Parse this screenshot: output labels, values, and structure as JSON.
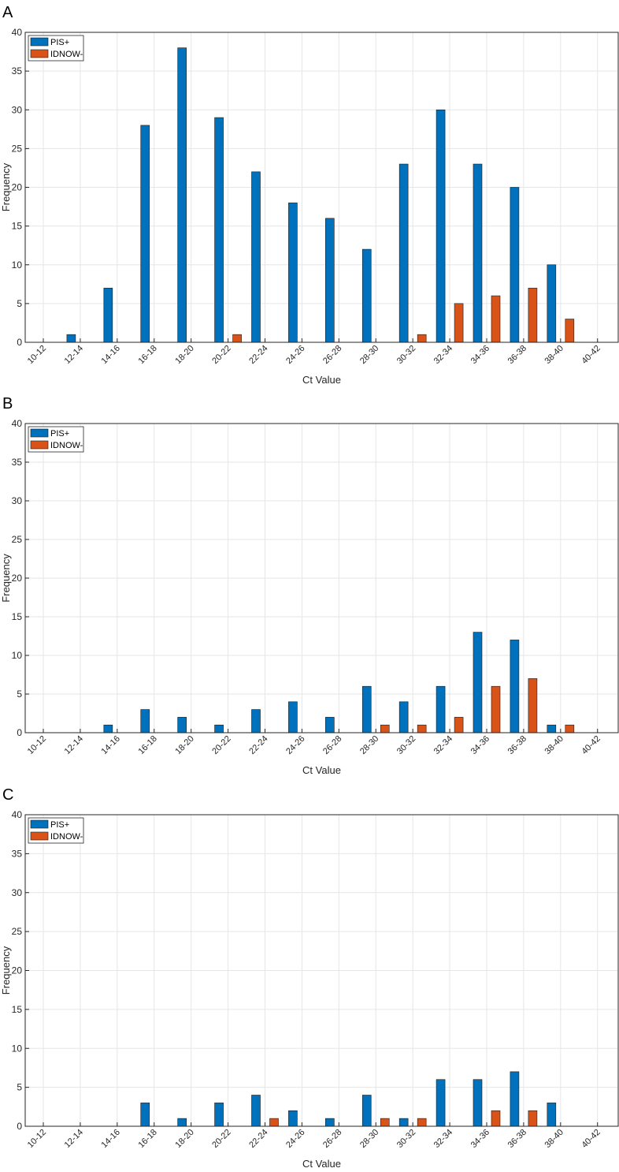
{
  "colors": {
    "series_1": "#0072BD",
    "series_2": "#D95319",
    "axis": "#262626",
    "grid": "#e6e6e6"
  },
  "chart_data": [
    {
      "type": "bar",
      "panel_label": "A",
      "title": "",
      "xlabel": "Ct Value",
      "ylabel": "Frequency",
      "ylim": [
        0,
        40
      ],
      "yticks": [
        0,
        5,
        10,
        15,
        20,
        25,
        30,
        35,
        40
      ],
      "grid": true,
      "legend_position": "top-left",
      "categories": [
        "10-12",
        "12-14",
        "14-16",
        "16-18",
        "18-20",
        "20-22",
        "22-24",
        "24-26",
        "26-28",
        "28-30",
        "30-32",
        "32-34",
        "34-36",
        "36-38",
        "38-40",
        "40-42"
      ],
      "series": [
        {
          "name": "PIS+",
          "values": [
            0,
            1,
            7,
            28,
            38,
            29,
            22,
            18,
            16,
            12,
            23,
            30,
            23,
            20,
            10,
            0
          ]
        },
        {
          "name": "IDNOW-",
          "values": [
            0,
            0,
            0,
            0,
            0,
            1,
            0,
            0,
            0,
            0,
            1,
            5,
            6,
            7,
            3,
            0
          ]
        }
      ]
    },
    {
      "type": "bar",
      "panel_label": "B",
      "title": "",
      "xlabel": "Ct Value",
      "ylabel": "Frequency",
      "ylim": [
        0,
        40
      ],
      "yticks": [
        0,
        5,
        10,
        15,
        20,
        25,
        30,
        35,
        40
      ],
      "grid": true,
      "legend_position": "top-left",
      "categories": [
        "10-12",
        "12-14",
        "14-16",
        "16-18",
        "18-20",
        "20-22",
        "22-24",
        "24-26",
        "26-28",
        "28-30",
        "30-32",
        "32-34",
        "34-36",
        "36-38",
        "38-40",
        "40-42"
      ],
      "series": [
        {
          "name": "PIS+",
          "values": [
            0,
            0,
            1,
            3,
            2,
            1,
            3,
            4,
            2,
            6,
            4,
            6,
            13,
            12,
            1,
            0
          ]
        },
        {
          "name": "IDNOW-",
          "values": [
            0,
            0,
            0,
            0,
            0,
            0,
            0,
            0,
            0,
            1,
            1,
            2,
            6,
            7,
            1,
            0
          ]
        }
      ]
    },
    {
      "type": "bar",
      "panel_label": "C",
      "title": "",
      "xlabel": "Ct Value",
      "ylabel": "Frequency",
      "ylim": [
        0,
        40
      ],
      "yticks": [
        0,
        5,
        10,
        15,
        20,
        25,
        30,
        35,
        40
      ],
      "grid": true,
      "legend_position": "top-left",
      "categories": [
        "10-12",
        "12-14",
        "14-16",
        "16-18",
        "18-20",
        "20-22",
        "22-24",
        "24-26",
        "26-28",
        "28-30",
        "30-32",
        "32-34",
        "34-36",
        "36-38",
        "38-40",
        "40-42"
      ],
      "series": [
        {
          "name": "PIS+",
          "values": [
            0,
            0,
            0,
            3,
            1,
            3,
            4,
            2,
            1,
            4,
            1,
            6,
            6,
            7,
            3,
            0
          ]
        },
        {
          "name": "IDNOW-",
          "values": [
            0,
            0,
            0,
            0,
            0,
            0,
            1,
            0,
            0,
            1,
            1,
            0,
            2,
            2,
            0,
            0
          ]
        }
      ]
    }
  ]
}
